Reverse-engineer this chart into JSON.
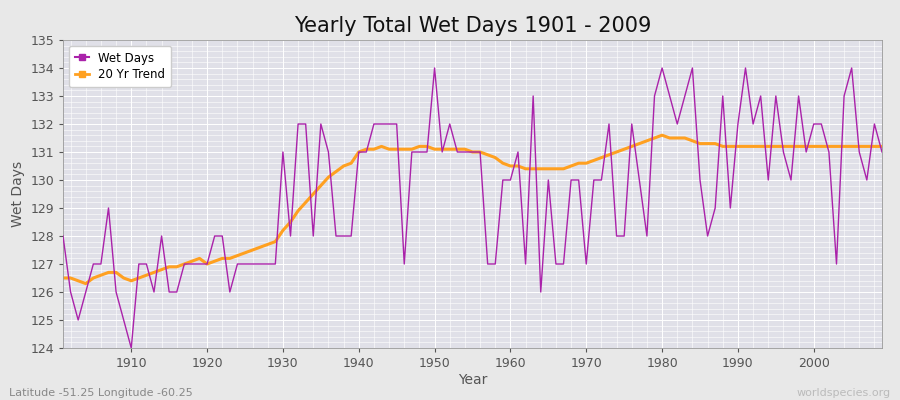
{
  "title": "Yearly Total Wet Days 1901 - 2009",
  "xlabel": "Year",
  "ylabel": "Wet Days",
  "subtitle": "Latitude -51.25 Longitude -60.25",
  "watermark": "worldspecies.org",
  "years": [
    1901,
    1902,
    1903,
    1904,
    1905,
    1906,
    1907,
    1908,
    1909,
    1910,
    1911,
    1912,
    1913,
    1914,
    1915,
    1916,
    1917,
    1918,
    1919,
    1920,
    1921,
    1922,
    1923,
    1924,
    1925,
    1926,
    1927,
    1928,
    1929,
    1930,
    1931,
    1932,
    1933,
    1934,
    1935,
    1936,
    1937,
    1938,
    1939,
    1940,
    1941,
    1942,
    1943,
    1944,
    1945,
    1946,
    1947,
    1948,
    1949,
    1950,
    1951,
    1952,
    1953,
    1954,
    1955,
    1956,
    1957,
    1958,
    1959,
    1960,
    1961,
    1962,
    1963,
    1964,
    1965,
    1966,
    1967,
    1968,
    1969,
    1970,
    1971,
    1972,
    1973,
    1974,
    1975,
    1976,
    1977,
    1978,
    1979,
    1980,
    1981,
    1982,
    1983,
    1984,
    1985,
    1986,
    1987,
    1988,
    1989,
    1990,
    1991,
    1992,
    1993,
    1994,
    1995,
    1996,
    1997,
    1998,
    1999,
    2000,
    2001,
    2002,
    2003,
    2004,
    2005,
    2006,
    2007,
    2008,
    2009
  ],
  "wet_days": [
    128,
    126,
    125,
    126,
    127,
    127,
    129,
    126,
    125,
    124,
    127,
    127,
    126,
    128,
    126,
    126,
    127,
    127,
    127,
    127,
    128,
    128,
    126,
    127,
    127,
    127,
    127,
    127,
    127,
    131,
    128,
    132,
    132,
    128,
    132,
    131,
    128,
    128,
    128,
    131,
    131,
    132,
    132,
    132,
    132,
    127,
    131,
    131,
    131,
    134,
    131,
    132,
    131,
    131,
    131,
    131,
    127,
    127,
    130,
    130,
    131,
    127,
    133,
    126,
    130,
    127,
    127,
    130,
    130,
    127,
    130,
    130,
    132,
    128,
    128,
    132,
    130,
    128,
    133,
    134,
    133,
    132,
    133,
    134,
    130,
    128,
    129,
    133,
    129,
    132,
    134,
    132,
    133,
    130,
    133,
    131,
    130,
    133,
    131,
    132,
    132,
    131,
    127,
    133,
    134,
    131,
    130,
    132,
    131
  ],
  "trend_years": [
    1901,
    1902,
    1903,
    1904,
    1905,
    1906,
    1907,
    1908,
    1909,
    1910,
    1911,
    1912,
    1913,
    1914,
    1915,
    1916,
    1917,
    1918,
    1919,
    1920,
    1921,
    1922,
    1923,
    1924,
    1925,
    1926,
    1927,
    1928,
    1929,
    1930,
    1931,
    1932,
    1933,
    1934,
    1935,
    1936,
    1937,
    1938,
    1939,
    1940,
    1941,
    1942,
    1943,
    1944,
    1945,
    1946,
    1947,
    1948,
    1949,
    1950,
    1951,
    1952,
    1953,
    1954,
    1955,
    1956,
    1957,
    1958,
    1959,
    1960,
    1961,
    1962,
    1963,
    1964,
    1965,
    1966,
    1967,
    1968,
    1969,
    1970,
    1971,
    1972,
    1973,
    1974,
    1975,
    1976,
    1977,
    1978,
    1979,
    1980,
    1981,
    1982,
    1983,
    1984,
    1985,
    1986,
    1987,
    1988,
    1989,
    1990,
    1991,
    1992,
    1993,
    1994,
    1995,
    1996,
    1997,
    1998,
    1999,
    2000,
    2001,
    2002,
    2003,
    2004,
    2005,
    2006,
    2007,
    2008,
    2009
  ],
  "trend_values": [
    126.5,
    126.5,
    126.4,
    126.3,
    126.5,
    126.6,
    126.7,
    126.7,
    126.5,
    126.4,
    126.5,
    126.6,
    126.7,
    126.8,
    126.9,
    126.9,
    127.0,
    127.1,
    127.2,
    127.0,
    127.1,
    127.2,
    127.2,
    127.3,
    127.4,
    127.5,
    127.6,
    127.7,
    127.8,
    128.2,
    128.5,
    128.9,
    129.2,
    129.5,
    129.8,
    130.1,
    130.3,
    130.5,
    130.6,
    131.0,
    131.1,
    131.1,
    131.2,
    131.1,
    131.1,
    131.1,
    131.1,
    131.2,
    131.2,
    131.1,
    131.1,
    131.1,
    131.1,
    131.1,
    131.0,
    131.0,
    130.9,
    130.8,
    130.6,
    130.5,
    130.5,
    130.4,
    130.4,
    130.4,
    130.4,
    130.4,
    130.4,
    130.5,
    130.6,
    130.6,
    130.7,
    130.8,
    130.9,
    131.0,
    131.1,
    131.2,
    131.3,
    131.4,
    131.5,
    131.6,
    131.5,
    131.5,
    131.5,
    131.4,
    131.3,
    131.3,
    131.3,
    131.2,
    131.2,
    131.2,
    131.2,
    131.2,
    131.2,
    131.2,
    131.2,
    131.2,
    131.2,
    131.2,
    131.2,
    131.2,
    131.2,
    131.2,
    131.2,
    131.2,
    131.2,
    131.2,
    131.2,
    131.2,
    131.2
  ],
  "wet_days_color": "#AA22AA",
  "trend_color": "#FFA020",
  "background_color": "#E8E8E8",
  "plot_bg_color": "#E0E0E8",
  "ylim": [
    124,
    135
  ],
  "yticks": [
    124,
    125,
    126,
    127,
    128,
    129,
    130,
    131,
    132,
    133,
    134,
    135
  ],
  "xticks": [
    1910,
    1920,
    1930,
    1940,
    1950,
    1960,
    1970,
    1980,
    1990,
    2000
  ],
  "grid_color": "#FFFFFF",
  "title_fontsize": 15,
  "axis_fontsize": 10,
  "tick_fontsize": 9
}
